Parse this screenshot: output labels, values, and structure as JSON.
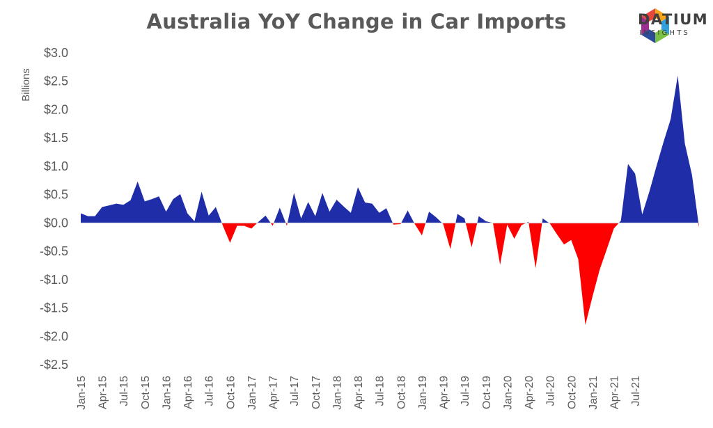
{
  "header": {
    "title": "Australia YoY Change in Car Imports",
    "logo_name": "DATIUM",
    "logo_sub": "INSIGHTS"
  },
  "colors": {
    "positive": "#1f2ea8",
    "negative": "#ff0000",
    "text": "#595959"
  },
  "chart_data": {
    "type": "area",
    "title": "Australia YoY Change in Car Imports",
    "ylabel": "Billions",
    "xlabel": "",
    "ylim": [
      -2.5,
      3.0
    ],
    "yticks": [
      3.0,
      2.5,
      2.0,
      1.5,
      1.0,
      0.5,
      0.0,
      -0.5,
      -1.0,
      -1.5,
      -2.0,
      -2.5
    ],
    "ytick_labels": [
      "$3.0",
      "$2.5",
      "$2.0",
      "$1.5",
      "$1.0",
      "$0.5",
      "$0.0",
      "-$0.5",
      "-$1.0",
      "-$1.5",
      "-$2.0",
      "-$2.5"
    ],
    "xtick_labels": [
      "Jan-15",
      "Apr-15",
      "Jul-15",
      "Oct-15",
      "Jan-16",
      "Apr-16",
      "Jul-16",
      "Oct-16",
      "Jan-17",
      "Apr-17",
      "Jul-17",
      "Oct-17",
      "Jan-18",
      "Apr-18",
      "Jul-18",
      "Oct-18",
      "Jan-19",
      "Apr-19",
      "Jul-19",
      "Oct-19",
      "Jan-20",
      "Apr-20",
      "Jul-20",
      "Oct-20",
      "Jan-21",
      "Apr-21",
      "Jul-21"
    ],
    "xtick_every": 3,
    "grid": false,
    "legend": "none",
    "x_start": "Jan-15",
    "x_end": "Sep-21",
    "values": [
      0.17,
      0.12,
      0.12,
      0.28,
      0.31,
      0.34,
      0.32,
      0.4,
      0.73,
      0.38,
      0.42,
      0.47,
      0.2,
      0.42,
      0.51,
      0.17,
      0.03,
      0.55,
      0.13,
      0.28,
      -0.05,
      -0.35,
      -0.05,
      -0.05,
      -0.1,
      0.02,
      0.13,
      -0.05,
      0.27,
      -0.05,
      0.53,
      0.08,
      0.37,
      0.12,
      0.53,
      0.2,
      0.41,
      0.29,
      0.18,
      0.63,
      0.36,
      0.34,
      0.18,
      0.26,
      -0.03,
      -0.02,
      0.22,
      -0.02,
      -0.22,
      0.2,
      0.1,
      -0.02,
      -0.46,
      0.16,
      0.08,
      -0.43,
      0.12,
      0.03,
      0.0,
      -0.74,
      -0.03,
      -0.28,
      -0.04,
      0.02,
      -0.8,
      0.08,
      -0.01,
      -0.2,
      -0.38,
      -0.3,
      -0.64,
      -1.8,
      -1.3,
      -0.83,
      -0.47,
      -0.1,
      0.04,
      1.04,
      0.87,
      0.15,
      0.55,
      1.0,
      1.43,
      1.83,
      2.6,
      1.4,
      0.85,
      -0.08
    ]
  }
}
